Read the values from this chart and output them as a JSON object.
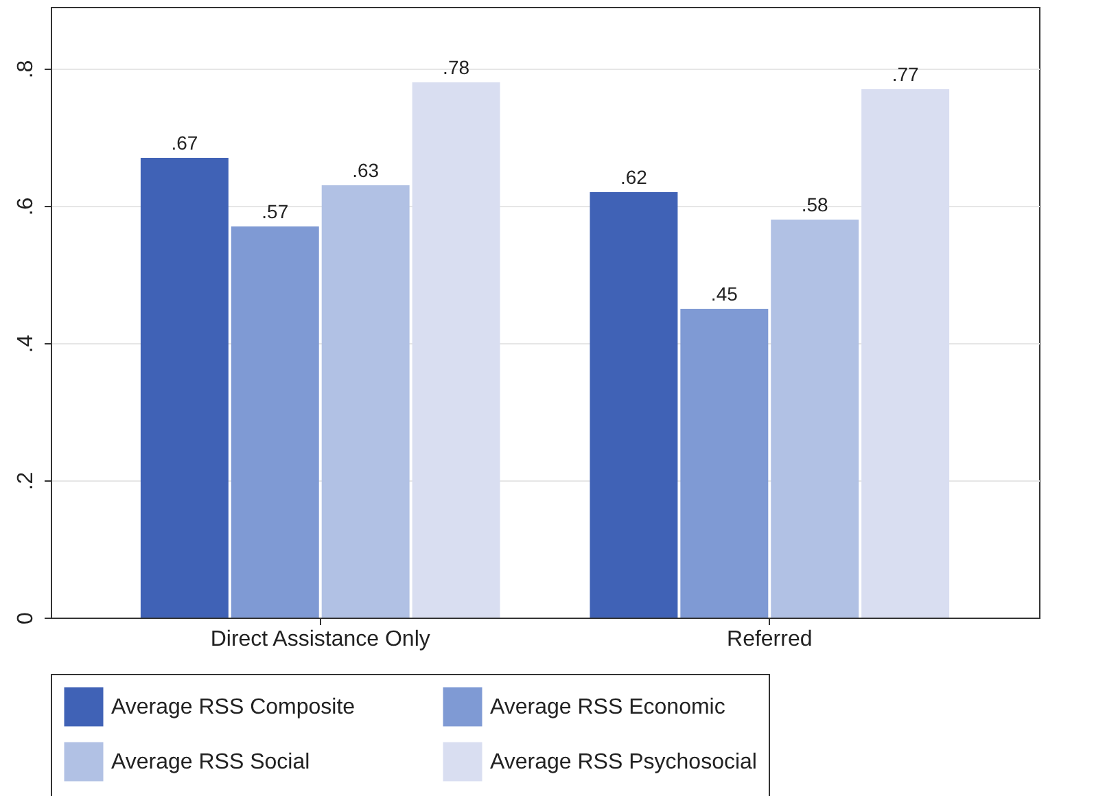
{
  "chart_data": {
    "type": "bar",
    "categories": [
      "Direct Assistance Only",
      "Referred"
    ],
    "series": [
      {
        "name": "Average RSS Composite",
        "color": "#4062b6",
        "values": [
          0.67,
          0.62
        ],
        "value_labels": [
          ".67",
          ".62"
        ]
      },
      {
        "name": "Average RSS Economic",
        "color": "#7f9ad4",
        "values": [
          0.57,
          0.45
        ],
        "value_labels": [
          ".57",
          ".45"
        ]
      },
      {
        "name": "Average RSS Social",
        "color": "#b1c1e4",
        "values": [
          0.63,
          0.58
        ],
        "value_labels": [
          ".63",
          ".58"
        ]
      },
      {
        "name": "Average RSS Psychosocial",
        "color": "#d9def1",
        "values": [
          0.78,
          0.77
        ],
        "value_labels": [
          ".78",
          ".77"
        ]
      }
    ],
    "ylim": [
      0,
      0.89
    ],
    "yticks": [
      0,
      {
        "value": 0.2,
        "label": ".2"
      },
      {
        "value": 0.4,
        "label": ".4"
      },
      {
        "value": 0.6,
        "label": ".6"
      },
      {
        "value": 0.8,
        "label": ".8"
      }
    ],
    "grid": "y",
    "legend": "bottom"
  }
}
